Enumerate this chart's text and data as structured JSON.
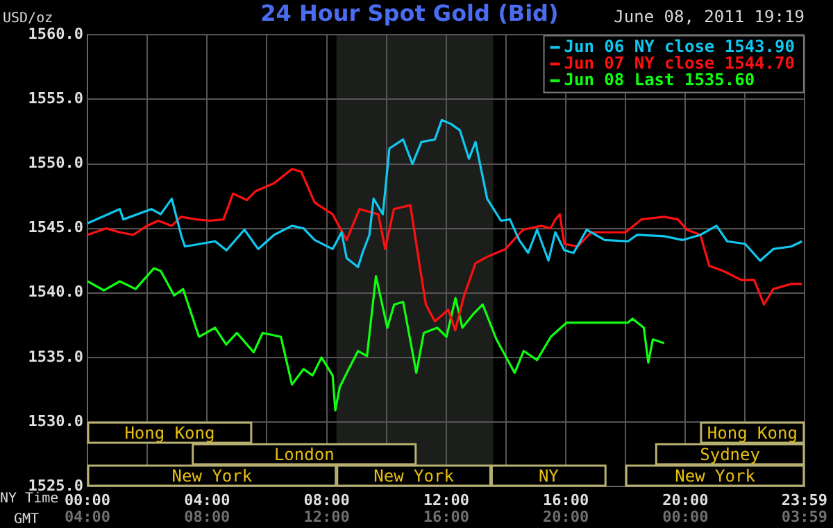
{
  "chart_data": {
    "type": "line",
    "title": "24 Hour Spot Gold (Bid)",
    "ylabel": "USD/oz",
    "xlabel": "NY Time",
    "x2label": "GMT",
    "annotations": [
      "June 08, 2011 19:19"
    ],
    "xlim": [
      0,
      23.983
    ],
    "xticks": [
      {
        "value": 0,
        "label": "00:00"
      },
      {
        "value": 2,
        "label": null
      },
      {
        "value": 4,
        "label": "04:00"
      },
      {
        "value": 6,
        "label": null
      },
      {
        "value": 8,
        "label": "08:00"
      },
      {
        "value": 10,
        "label": null
      },
      {
        "value": 12,
        "label": "12:00"
      },
      {
        "value": 14,
        "label": null
      },
      {
        "value": 16,
        "label": "16:00"
      },
      {
        "value": 18,
        "label": null
      },
      {
        "value": 20,
        "label": "20:00"
      },
      {
        "value": 22,
        "label": null
      },
      {
        "value": 23.983,
        "label": "23:59"
      }
    ],
    "x2lim": [
      "2011-06-08T04:00",
      "2011-06-09T03:59"
    ],
    "x2ticks": [
      {
        "value": "2011-06-08T04:00",
        "label": "04:00"
      },
      {
        "value": "2011-06-08T08:00",
        "label": "08:00"
      },
      {
        "value": "2011-06-08T12:00",
        "label": "12:00"
      },
      {
        "value": "2011-06-08T16:00",
        "label": "16:00"
      },
      {
        "value": "2011-06-08T20:00",
        "label": "20:00"
      },
      {
        "value": "2011-06-09T00:00",
        "label": "00:00"
      },
      {
        "value": "2011-06-09T03:59",
        "label": "03:59"
      }
    ],
    "ylim": [
      1525,
      1560
    ],
    "yticks": [
      {
        "value": 1525,
        "label": "1525.0"
      },
      {
        "value": 1530,
        "label": "1530.0"
      },
      {
        "value": 1535,
        "label": "1535.0"
      },
      {
        "value": 1540,
        "label": "1540.0"
      },
      {
        "value": 1545,
        "label": "1545.0"
      },
      {
        "value": 1550,
        "label": "1550.0"
      },
      {
        "value": 1555,
        "label": "1555.0"
      },
      {
        "value": 1560,
        "label": "1560.0"
      }
    ],
    "grid": true,
    "legend": "top right",
    "marker": "none",
    "bands": [
      {
        "axis": "x",
        "from": 8.33,
        "to": 13.57,
        "color": "#1c1e1c"
      },
      {
        "axis": "x",
        "from": 0,
        "to": 8.33,
        "label": "New York"
      },
      {
        "axis": "x",
        "from": 8.33,
        "to": 13.5,
        "label": "New York"
      },
      {
        "axis": "x",
        "from": 13.5,
        "to": 17.35,
        "label": "NY"
      },
      {
        "axis": "x",
        "from": 18,
        "to": 23.983,
        "label": "New York"
      },
      {
        "axis": "x",
        "from": 3.5,
        "to": 11,
        "label": "London"
      },
      {
        "axis": "x",
        "from": 19,
        "to": 23.983,
        "label": "Sydney"
      },
      {
        "axis": "x",
        "from": 0,
        "to": 5.5,
        "label": "Hong Kong"
      },
      {
        "axis": "x",
        "from": 20.5,
        "to": 23.983,
        "label": "Hong Kong"
      }
    ],
    "series": [
      {
        "name": "Jun 06 NY close 1543.90",
        "color": "#10c8f0",
        "x": [
          0,
          1.08,
          1.2,
          2.14,
          2.45,
          2.82,
          3.13,
          3.26,
          4.27,
          4.65,
          5.25,
          5.71,
          6.24,
          6.84,
          7.23,
          7.6,
          8.2,
          8.5,
          8.67,
          9.05,
          9.2,
          9.43,
          9.57,
          9.88,
          10.1,
          10.56,
          10.87,
          11.17,
          11.62,
          11.85,
          12.16,
          12.46,
          12.76,
          12.98,
          13.37,
          13.83,
          14.13,
          14.44,
          14.74,
          15.04,
          15.42,
          15.65,
          15.95,
          16.26,
          16.7,
          17.3,
          18.08,
          18.38,
          19.29,
          19.9,
          20.5,
          21.04,
          21.4,
          22.0,
          22.5,
          22.94,
          23.54,
          23.9
        ],
        "values": [
          1545.4,
          1546.5,
          1545.7,
          1546.5,
          1546.1,
          1547.3,
          1544.5,
          1543.6,
          1544.0,
          1543.3,
          1544.9,
          1543.4,
          1544.5,
          1545.2,
          1545.0,
          1544.1,
          1543.4,
          1544.7,
          1542.7,
          1542.0,
          1543.1,
          1544.5,
          1547.3,
          1546.1,
          1551.2,
          1551.9,
          1550.0,
          1551.7,
          1551.9,
          1553.4,
          1553.1,
          1552.6,
          1550.4,
          1551.7,
          1547.3,
          1545.6,
          1545.7,
          1544.1,
          1543.1,
          1544.9,
          1542.5,
          1544.7,
          1543.3,
          1543.1,
          1544.9,
          1544.1,
          1544.0,
          1544.5,
          1544.4,
          1544.1,
          1544.5,
          1545.2,
          1544.0,
          1543.8,
          1542.5,
          1543.4,
          1543.6,
          1544.0
        ]
      },
      {
        "name": "Jun 07 NY close 1544.70",
        "color": "#ff1010",
        "x": [
          0,
          0.62,
          1.08,
          1.53,
          1.99,
          2.37,
          2.82,
          3.13,
          3.64,
          4.1,
          4.55,
          4.87,
          5.33,
          5.63,
          6.24,
          6.84,
          7.15,
          7.6,
          8.2,
          8.67,
          9.1,
          9.73,
          9.96,
          10.25,
          10.8,
          11.1,
          11.32,
          11.62,
          12.07,
          12.3,
          12.6,
          12.98,
          13.37,
          13.98,
          14.57,
          15.19,
          15.49,
          15.65,
          15.8,
          15.95,
          16.4,
          16.85,
          18.0,
          18.53,
          19.29,
          19.75,
          20.05,
          20.5,
          20.8,
          21.27,
          21.87,
          22.3,
          22.63,
          22.94,
          23.54,
          23.9
        ],
        "values": [
          1544.5,
          1545.0,
          1544.7,
          1544.5,
          1545.2,
          1545.6,
          1545.2,
          1545.9,
          1545.7,
          1545.6,
          1545.7,
          1547.7,
          1547.2,
          1547.9,
          1548.5,
          1549.6,
          1549.4,
          1547.0,
          1546.1,
          1544.1,
          1546.5,
          1546.1,
          1543.4,
          1546.5,
          1546.8,
          1542.3,
          1539.1,
          1537.8,
          1538.7,
          1537.1,
          1539.8,
          1542.3,
          1542.8,
          1543.4,
          1544.9,
          1545.2,
          1545.0,
          1545.7,
          1546.1,
          1543.8,
          1543.6,
          1544.7,
          1544.7,
          1545.7,
          1545.9,
          1545.7,
          1544.9,
          1544.5,
          1542.1,
          1541.7,
          1541.0,
          1541.0,
          1539.1,
          1540.3,
          1540.7,
          1540.7
        ]
      },
      {
        "name": "Jun 08 Last 1535.60",
        "color": "#10ff10",
        "x": [
          0,
          0.55,
          1.08,
          1.61,
          2.22,
          2.45,
          2.9,
          3.2,
          3.73,
          4.27,
          4.64,
          5.0,
          5.56,
          5.86,
          6.47,
          6.84,
          7.23,
          7.53,
          7.83,
          8.2,
          8.29,
          8.44,
          8.74,
          9.05,
          9.35,
          9.65,
          10.03,
          10.26,
          10.56,
          11.0,
          11.25,
          11.7,
          12.01,
          12.31,
          12.54,
          12.92,
          13.22,
          13.68,
          14.29,
          14.59,
          15.04,
          15.5,
          16.03,
          16.87,
          18.08,
          18.23,
          18.61,
          18.76,
          18.91,
          19.29
        ],
        "values": [
          1540.9,
          1540.2,
          1540.9,
          1540.3,
          1541.9,
          1541.7,
          1539.8,
          1540.3,
          1536.6,
          1537.3,
          1536.0,
          1536.9,
          1535.4,
          1536.9,
          1536.6,
          1532.9,
          1534.1,
          1533.6,
          1535.0,
          1533.6,
          1530.9,
          1532.7,
          1534.1,
          1535.5,
          1535.1,
          1541.3,
          1537.3,
          1539.1,
          1539.3,
          1533.8,
          1536.9,
          1537.3,
          1536.6,
          1539.6,
          1537.3,
          1538.4,
          1539.1,
          1536.4,
          1533.8,
          1535.5,
          1534.8,
          1536.6,
          1537.7,
          1537.7,
          1537.7,
          1538.0,
          1537.3,
          1534.6,
          1536.4,
          1536.1
        ]
      }
    ]
  }
}
